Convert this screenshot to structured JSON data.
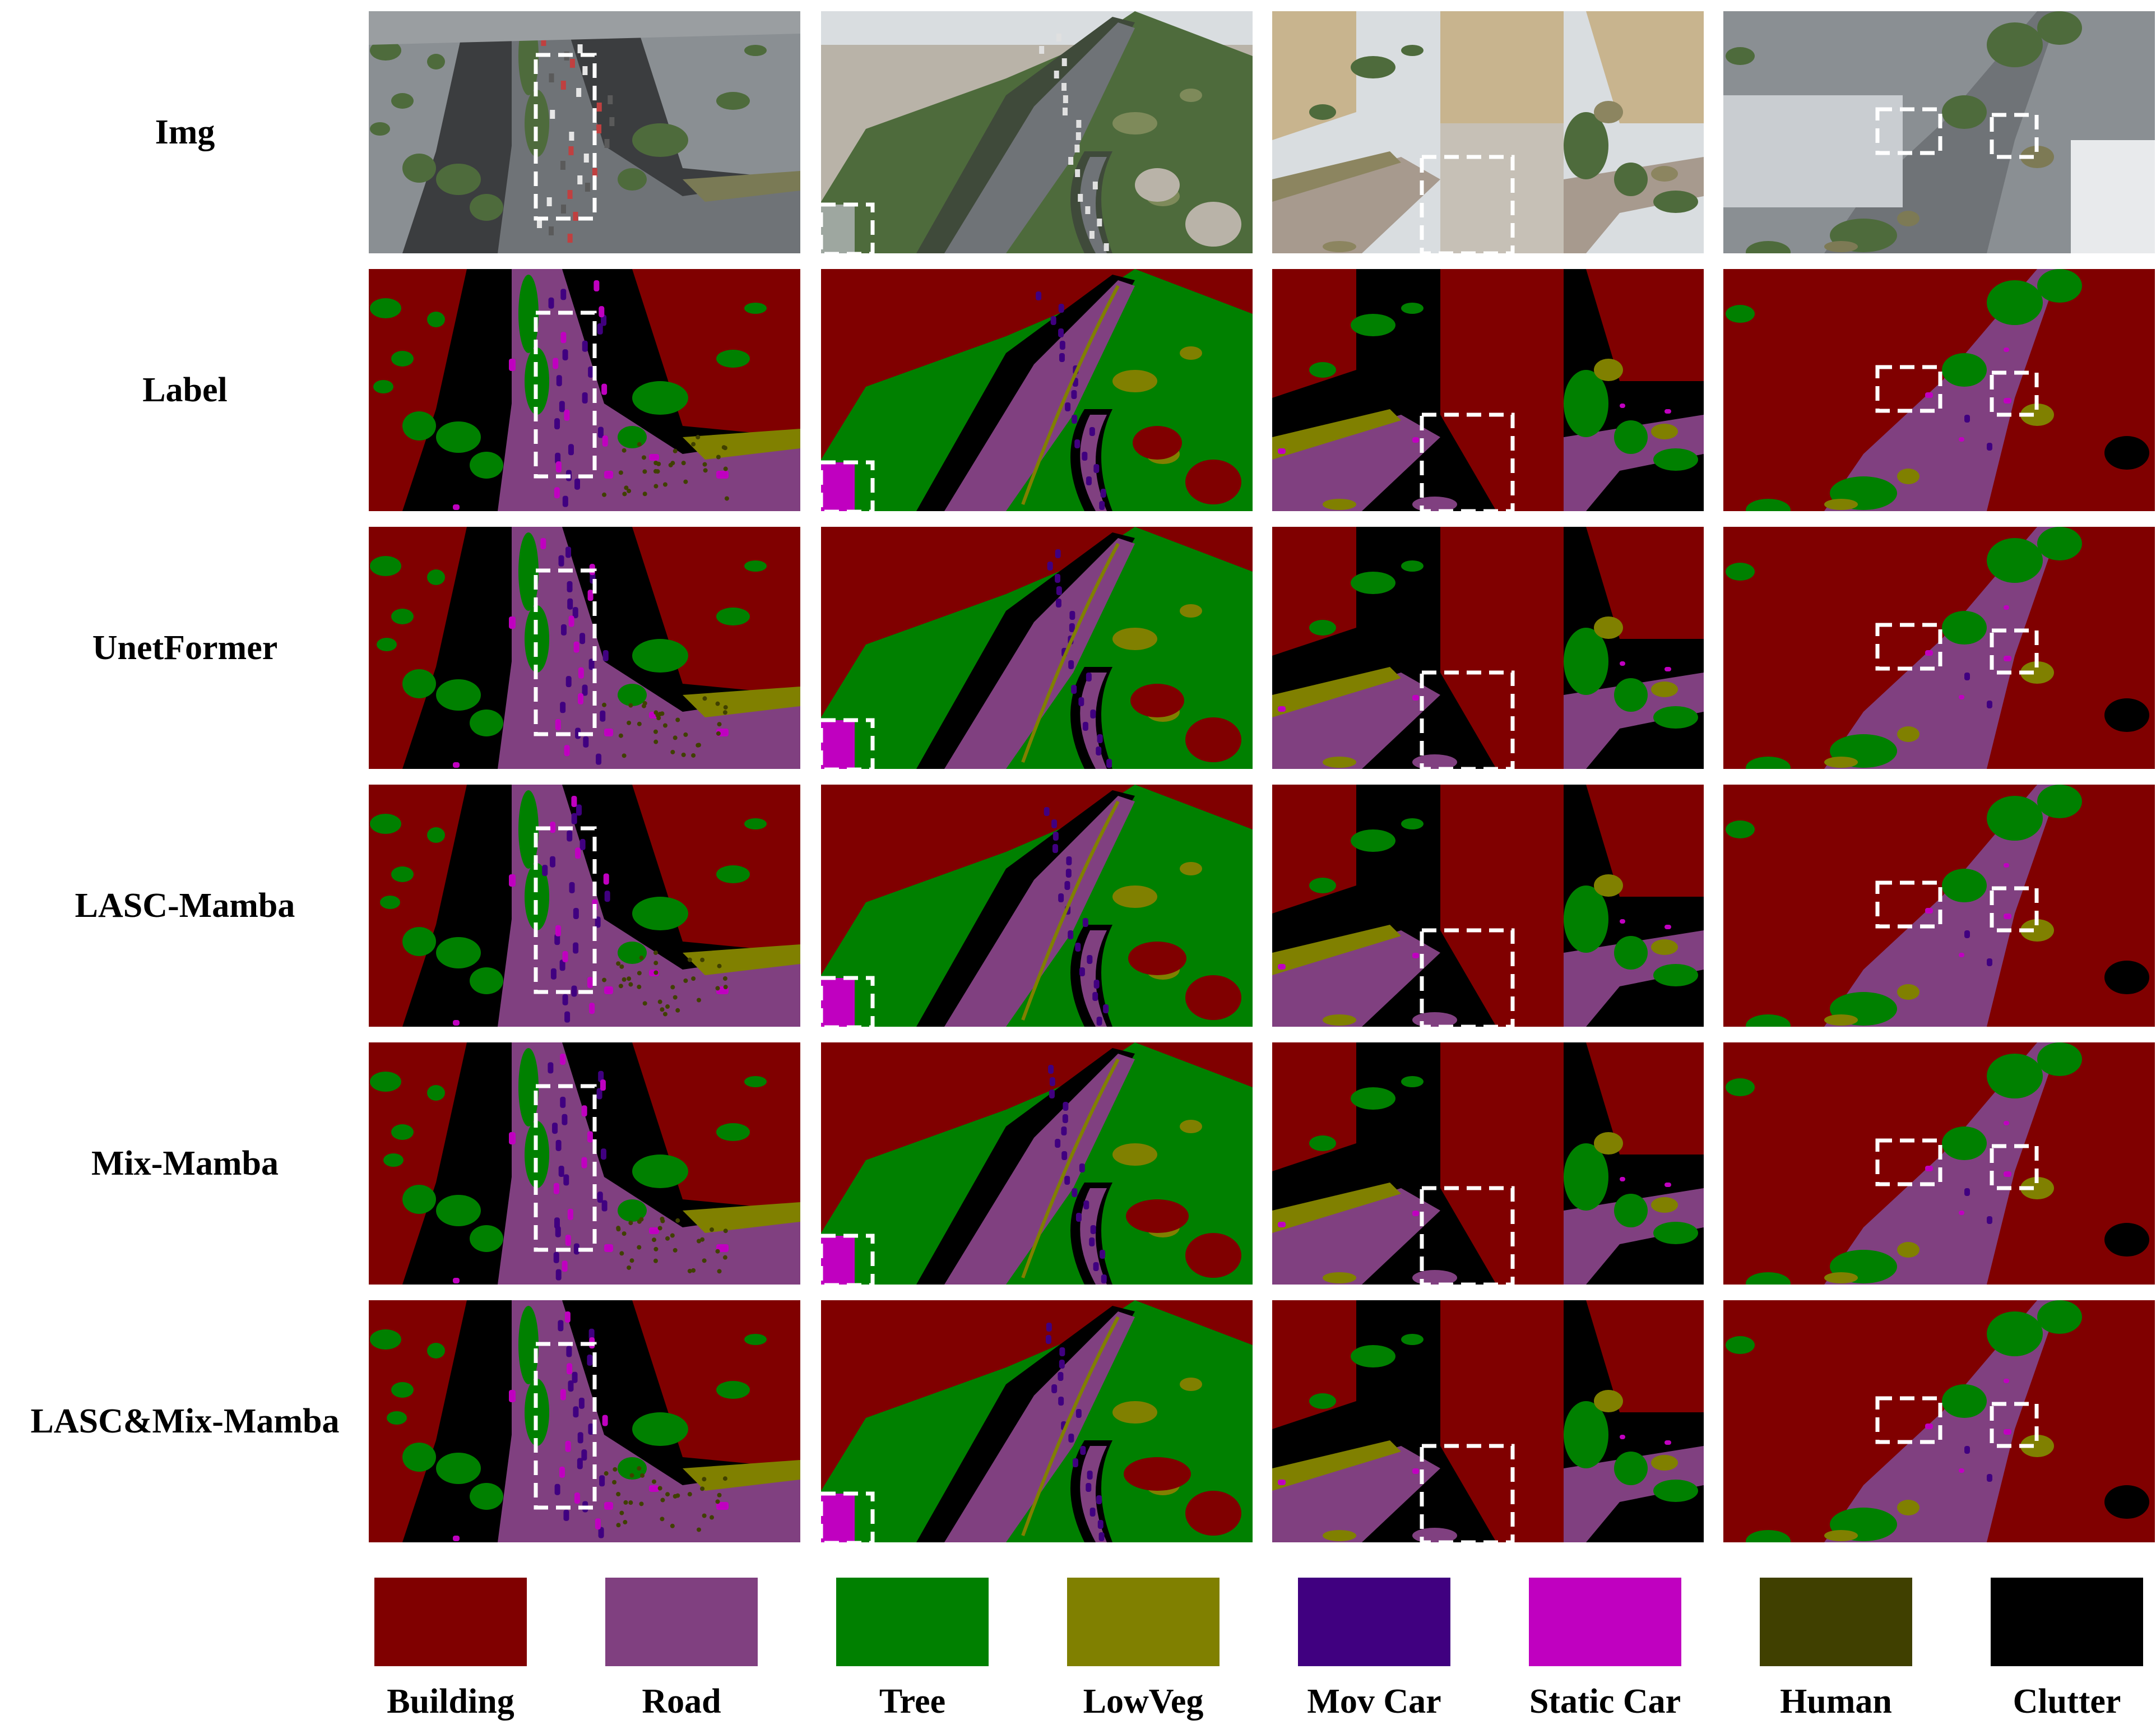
{
  "rows": [
    {
      "label": "Img",
      "kind": "photo"
    },
    {
      "label": "Label",
      "kind": "seg"
    },
    {
      "label": "UnetFormer",
      "kind": "seg"
    },
    {
      "label": "LASC-Mamba",
      "kind": "seg"
    },
    {
      "label": "Mix-Mamba",
      "kind": "seg"
    },
    {
      "label": "LASC&Mix-Mamba",
      "kind": "seg"
    }
  ],
  "scene_count": 4,
  "legend": [
    {
      "name": "Building",
      "color": "#800000"
    },
    {
      "name": "Road",
      "color": "#804080"
    },
    {
      "name": "Tree",
      "color": "#008000"
    },
    {
      "name": "LowVeg",
      "color": "#808000"
    },
    {
      "name": "Mov Car",
      "color": "#400080"
    },
    {
      "name": "Static Car",
      "color": "#C000C0"
    },
    {
      "name": "Human",
      "color": "#404000"
    },
    {
      "name": "Clutter",
      "color": "#000000"
    }
  ],
  "photo_palette": {
    "sky": "#d9dde0",
    "rooftop": "#8a8f93",
    "street": "#6f7377",
    "foliage": "#4e6b3c",
    "tower": "#c8b48e",
    "plaza": "#b59a86"
  }
}
